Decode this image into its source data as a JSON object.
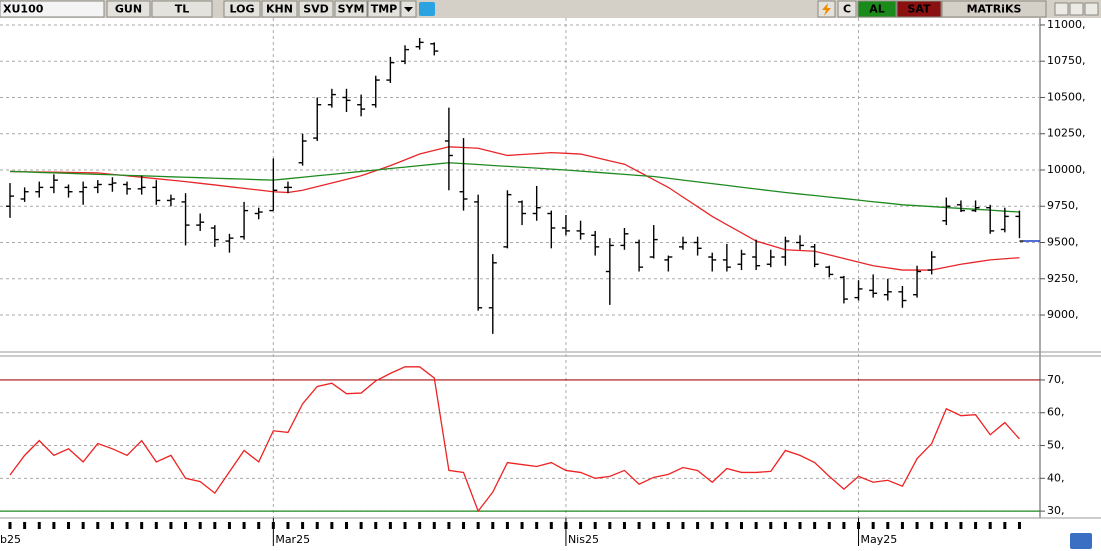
{
  "toolbar": {
    "symbol": "XU100",
    "buttons": [
      "GUN",
      "TL",
      "LOG",
      "KHN",
      "SVD",
      "SYM",
      "TMP"
    ],
    "c": "C",
    "buy": "AL",
    "sell": "SAT",
    "brand": "MATRiKS"
  },
  "chart_data": [
    {
      "type": "ohlc",
      "color": "#000000",
      "open": [
        9750,
        9800,
        9850,
        9880,
        9880,
        9850,
        9880,
        9900,
        9900,
        9870,
        9880,
        9790,
        9780,
        9620,
        9600,
        9510,
        9540,
        9700,
        9720,
        9880,
        10050,
        10220,
        10450,
        10500,
        10450,
        10450,
        10620,
        10750,
        10850,
        10870,
        10200,
        9850,
        9780,
        9050,
        9470,
        9780,
        9700,
        9700,
        9600,
        9580,
        9550,
        9300,
        9480,
        9500,
        9400,
        9380,
        9470,
        9500,
        9400,
        9380,
        9350,
        9400,
        9350,
        9400,
        9500,
        9470,
        9330,
        9260,
        9120,
        9170,
        9140,
        9160,
        9140,
        9310,
        9650,
        9760,
        9720,
        9740,
        9590,
        9680
      ],
      "high": [
        9910,
        9880,
        9920,
        9970,
        9900,
        9920,
        9930,
        9950,
        9920,
        9960,
        9930,
        9830,
        9840,
        9700,
        9620,
        9560,
        9780,
        9740,
        10080,
        9920,
        10250,
        10500,
        10560,
        10560,
        10520,
        10650,
        10780,
        10860,
        10910,
        10880,
        10430,
        10220,
        9830,
        9420,
        9860,
        9790,
        9890,
        9720,
        9690,
        9650,
        9580,
        9530,
        9600,
        9520,
        9620,
        9410,
        9540,
        9540,
        9430,
        9490,
        9450,
        9520,
        9450,
        9540,
        9550,
        9490,
        9340,
        9270,
        9240,
        9280,
        9250,
        9200,
        9340,
        9440,
        9810,
        9790,
        9790,
        9760,
        9740,
        9720
      ],
      "low": [
        9670,
        9780,
        9810,
        9840,
        9810,
        9760,
        9840,
        9850,
        9830,
        9830,
        9760,
        9750,
        9480,
        9580,
        9470,
        9430,
        9520,
        9660,
        9720,
        9840,
        10030,
        10200,
        10430,
        10400,
        10370,
        10430,
        10600,
        10730,
        10830,
        10790,
        9860,
        9720,
        9030,
        8870,
        9460,
        9620,
        9650,
        9460,
        9550,
        9520,
        9410,
        9070,
        9450,
        9300,
        9390,
        9300,
        9450,
        9410,
        9300,
        9300,
        9310,
        9310,
        9330,
        9340,
        9450,
        9330,
        9260,
        9080,
        9100,
        9120,
        9100,
        9050,
        9120,
        9280,
        9620,
        9710,
        9710,
        9560,
        9570,
        9530
      ],
      "close": [
        9820,
        9850,
        9880,
        9930,
        9850,
        9880,
        9900,
        9910,
        9870,
        9880,
        9790,
        9800,
        9620,
        9640,
        9520,
        9530,
        9720,
        9710,
        9860,
        9880,
        10200,
        10450,
        10520,
        10480,
        10420,
        10620,
        10740,
        10830,
        10880,
        10820,
        10100,
        9800,
        9050,
        9360,
        9830,
        9700,
        9740,
        9600,
        9580,
        9560,
        9470,
        9480,
        9560,
        9330,
        9520,
        9400,
        9500,
        9460,
        9380,
        9330,
        9420,
        9340,
        9400,
        9510,
        9480,
        9350,
        9280,
        9110,
        9180,
        9150,
        9160,
        9100,
        9300,
        9400,
        9750,
        9720,
        9740,
        9580,
        9680,
        9510
      ],
      "overlays": [
        {
          "color": "#e8262a",
          "values": [
            9990,
            9988,
            9986,
            9985,
            9983,
            9982,
            9980,
            9970,
            9960,
            9950,
            9940,
            9930,
            9920,
            9908,
            9897,
            9885,
            9873,
            9862,
            9850,
            9845,
            9860,
            9885,
            9910,
            9935,
            9960,
            9995,
            10030,
            10070,
            10110,
            10135,
            10160,
            10155,
            10150,
            10125,
            10100,
            10107,
            10113,
            10120,
            10115,
            10110,
            10087,
            10063,
            10040,
            9987,
            9933,
            9880,
            9813,
            9747,
            9680,
            9623,
            9567,
            9510,
            9480,
            9450,
            9445,
            9440,
            9415,
            9390,
            9365,
            9340,
            9325,
            9310,
            9310,
            9310,
            9330,
            9350,
            9365,
            9380,
            9388,
            9395
          ]
        },
        {
          "color": "#1f8a1f",
          "values": [
            9990,
            9987,
            9983,
            9980,
            9977,
            9973,
            9970,
            9967,
            9963,
            9960,
            9957,
            9953,
            9950,
            9947,
            9943,
            9940,
            9937,
            9933,
            9930,
            9940,
            9950,
            9960,
            9970,
            9980,
            9990,
            10000,
            10010,
            10020,
            10030,
            10040,
            10050,
            10044,
            10038,
            10031,
            10025,
            10019,
            10013,
            10006,
            10000,
            9992,
            9985,
            9977,
            9970,
            9962,
            9955,
            9943,
            9930,
            9918,
            9906,
            9894,
            9881,
            9869,
            9857,
            9845,
            9834,
            9824,
            9813,
            9803,
            9792,
            9781,
            9771,
            9760,
            9754,
            9748,
            9741,
            9735,
            9729,
            9723,
            9716,
            9710
          ]
        }
      ],
      "last_price_color": "#1a3cc8",
      "ylim": [
        8745,
        11048
      ],
      "yticks": [
        {
          "value": 9000,
          "label": "9000,"
        },
        {
          "value": 9250,
          "label": "9250,"
        },
        {
          "value": 9500,
          "label": "9500,"
        },
        {
          "value": 9750,
          "label": "9750,"
        },
        {
          "value": 10000,
          "label": "10000,"
        },
        {
          "value": 10250,
          "label": "10250,"
        },
        {
          "value": 10500,
          "label": "10500,"
        },
        {
          "value": 10750,
          "label": "10750,"
        },
        {
          "value": 11000,
          "label": "11000,"
        }
      ],
      "grid": true
    },
    {
      "type": "line",
      "color": "#ee2222",
      "values": [
        41,
        47,
        51.5,
        47,
        49,
        45,
        50.6,
        49,
        47,
        51.5,
        45,
        47,
        40,
        39,
        35.5,
        42,
        48.5,
        45,
        54.5,
        54,
        62.7,
        68,
        69,
        65.8,
        66,
        69.7,
        72,
        74,
        74,
        70.6,
        42.4,
        41.8,
        30,
        35.8,
        44.8,
        44.2,
        43.6,
        44.8,
        42.4,
        41.8,
        40,
        40.6,
        42.4,
        38.2,
        40.3,
        41.2,
        43.3,
        42.4,
        38.8,
        43,
        41.8,
        41.8,
        42.1,
        48.5,
        47,
        44.8,
        40.6,
        36.7,
        40.6,
        38.8,
        39.4,
        37.6,
        46,
        50.6,
        61.2,
        59.1,
        59.4,
        53.3,
        57,
        52
      ],
      "levels": [
        {
          "value": 70,
          "color": "#a01010"
        },
        {
          "value": 30,
          "color": "#1f8a1f"
        }
      ],
      "ylim": [
        27.9,
        77.3
      ],
      "yticks": [
        {
          "value": 30,
          "label": "30,"
        },
        {
          "value": 40,
          "label": "40,"
        },
        {
          "value": 50,
          "label": "50,"
        },
        {
          "value": 60,
          "label": "60,"
        },
        {
          "value": 70,
          "label": "70,"
        }
      ],
      "grid": true,
      "leading_label": "b25",
      "categories": [
        null,
        null,
        null,
        null,
        null,
        null,
        null,
        null,
        null,
        null,
        null,
        null,
        null,
        null,
        null,
        null,
        null,
        null,
        "Mar25",
        null,
        null,
        null,
        null,
        null,
        null,
        null,
        null,
        null,
        null,
        null,
        null,
        null,
        null,
        null,
        null,
        null,
        null,
        null,
        "Nis25",
        null,
        null,
        null,
        null,
        null,
        null,
        null,
        null,
        null,
        null,
        null,
        null,
        null,
        null,
        null,
        null,
        null,
        null,
        null,
        "May25",
        null,
        null,
        null,
        null,
        null,
        null,
        null,
        null,
        null,
        null,
        null
      ]
    }
  ]
}
